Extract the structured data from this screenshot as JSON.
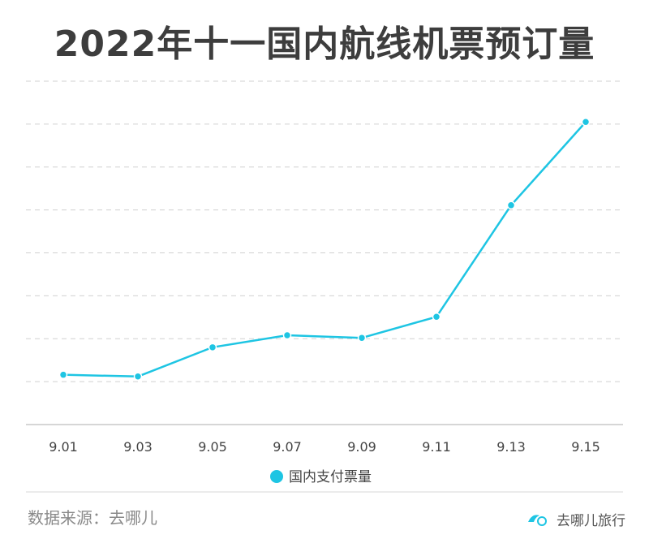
{
  "chart_data": {
    "type": "line",
    "title": "2022年十一国内航线机票预订量",
    "categories": [
      "9.01",
      "9.03",
      "9.05",
      "9.07",
      "9.09",
      "9.11",
      "9.13",
      "9.15"
    ],
    "series": [
      {
        "name": "国内支付票量",
        "values": [
          11.6,
          11.2,
          18.0,
          20.8,
          20.2,
          25.1,
          51.1,
          70.5
        ],
        "color": "#1ec5e3"
      }
    ],
    "ylim": [
      0,
      80
    ],
    "y_gridlines": [
      10,
      20,
      30,
      40,
      50,
      60,
      70,
      80
    ],
    "y_tick_labels_visible": false,
    "grid": "dashed-horizontal",
    "legend_position": "bottom-center"
  },
  "source": "数据来源：去哪儿",
  "watermark": {
    "text": "去哪儿旅行",
    "icon": "qunar-logo-icon"
  }
}
